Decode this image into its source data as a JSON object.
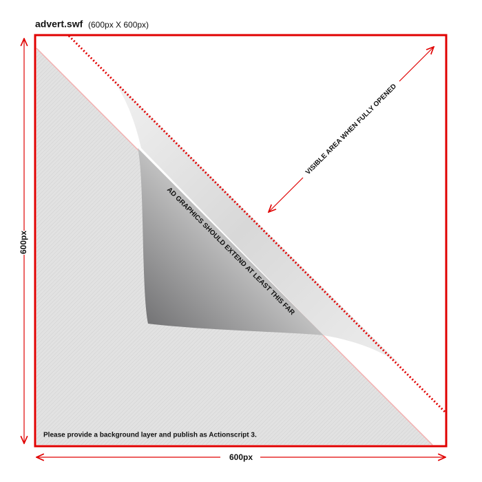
{
  "header": {
    "filename": "advert.swf",
    "size": "(600px X 600px)"
  },
  "dimensions": {
    "height_label": "600px",
    "width_label": "600px"
  },
  "annotations": {
    "visible_area": "VISIBLE AREA WHEN FULLY OPENED",
    "ad_graphics": "AD GRAPHICS SHOULD EXTEND AT LEAST THIS FAR"
  },
  "footer_note": "Please provide a background layer and publish as Actionscript 3."
}
